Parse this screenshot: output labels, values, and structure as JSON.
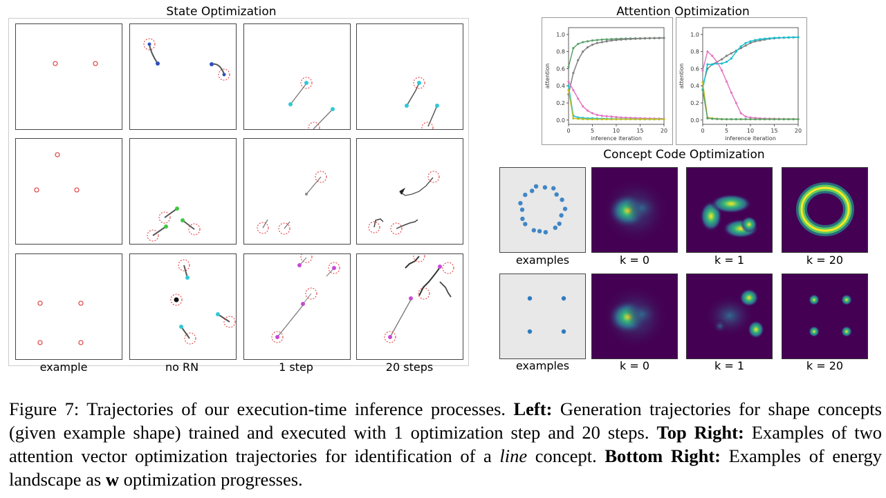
{
  "left": {
    "title": "State Optimization",
    "columns": [
      "example",
      "no RN",
      "1 step",
      "20 steps"
    ]
  },
  "top_right": {
    "title": "Attention Optimization",
    "xlabel": "inference iteration",
    "ylabel": "attention"
  },
  "bottom_right": {
    "title": "Concept Code Optimization",
    "row1_labels": [
      "examples",
      "k = 0",
      "k = 1",
      "k = 20"
    ],
    "row2_labels": [
      "examples",
      "k = 0",
      "k = 1",
      "k = 20"
    ]
  },
  "chart_data": [
    {
      "type": "line",
      "title": "",
      "xlabel": "inference iteration",
      "ylabel": "attention",
      "xlim": [
        0,
        20
      ],
      "ylim": [
        0,
        1.0
      ],
      "x_ticks": [
        0,
        5,
        10,
        15,
        20
      ],
      "y_ticks": [
        0.0,
        0.2,
        0.4,
        0.6,
        0.8,
        1.0
      ],
      "x": [
        0,
        1,
        2,
        3,
        4,
        5,
        6,
        7,
        8,
        9,
        10,
        11,
        12,
        13,
        14,
        15,
        16,
        17,
        18,
        19,
        20
      ],
      "series": [
        {
          "color": "#5aa06a",
          "values": [
            0.62,
            0.84,
            0.89,
            0.91,
            0.92,
            0.93,
            0.935,
            0.94,
            0.943,
            0.946,
            0.948,
            0.95,
            0.952,
            0.953,
            0.954,
            0.955,
            0.956,
            0.957,
            0.958,
            0.959,
            0.96
          ]
        },
        {
          "color": "#7f7f7f",
          "values": [
            0.3,
            0.55,
            0.7,
            0.8,
            0.85,
            0.88,
            0.9,
            0.91,
            0.92,
            0.93,
            0.935,
            0.94,
            0.944,
            0.947,
            0.95,
            0.952,
            0.954,
            0.956,
            0.957,
            0.958,
            0.96
          ]
        },
        {
          "color": "#e377c2",
          "values": [
            0.45,
            0.35,
            0.25,
            0.16,
            0.11,
            0.08,
            0.06,
            0.05,
            0.045,
            0.04,
            0.035,
            0.03,
            0.028,
            0.026,
            0.024,
            0.022,
            0.02,
            0.019,
            0.018,
            0.017,
            0.016
          ]
        },
        {
          "color": "#17becf",
          "values": [
            0.4,
            0.05,
            0.03,
            0.025,
            0.02,
            0.02,
            0.018,
            0.016,
            0.015,
            0.014,
            0.013,
            0.012,
            0.012,
            0.011,
            0.011,
            0.01,
            0.01,
            0.01,
            0.01,
            0.01,
            0.01
          ]
        },
        {
          "color": "#bcbd22",
          "values": [
            0.35,
            0.02,
            0.015,
            0.012,
            0.01,
            0.01,
            0.01,
            0.01,
            0.01,
            0.01,
            0.01,
            0.01,
            0.01,
            0.01,
            0.01,
            0.01,
            0.01,
            0.01,
            0.01,
            0.01,
            0.01
          ]
        }
      ]
    },
    {
      "type": "line",
      "title": "",
      "xlabel": "inference iteration",
      "ylabel": "attention",
      "xlim": [
        0,
        20
      ],
      "ylim": [
        0,
        1.0
      ],
      "x_ticks": [
        0,
        5,
        10,
        15,
        20
      ],
      "y_ticks": [
        0.0,
        0.2,
        0.4,
        0.6,
        0.8,
        1.0
      ],
      "x": [
        0,
        1,
        2,
        3,
        4,
        5,
        6,
        7,
        8,
        9,
        10,
        11,
        12,
        13,
        14,
        15,
        16,
        17,
        18,
        19,
        20
      ],
      "series": [
        {
          "color": "#7f7f7f",
          "values": [
            0.4,
            0.6,
            0.65,
            0.68,
            0.71,
            0.75,
            0.78,
            0.81,
            0.84,
            0.87,
            0.9,
            0.92,
            0.93,
            0.94,
            0.95,
            0.955,
            0.96,
            0.962,
            0.964,
            0.966,
            0.968
          ]
        },
        {
          "color": "#17becf",
          "values": [
            0.36,
            0.65,
            0.65,
            0.66,
            0.66,
            0.68,
            0.72,
            0.8,
            0.86,
            0.9,
            0.92,
            0.935,
            0.945,
            0.95,
            0.955,
            0.96,
            0.962,
            0.964,
            0.966,
            0.967,
            0.968
          ]
        },
        {
          "color": "#e377c2",
          "values": [
            0.58,
            0.8,
            0.75,
            0.68,
            0.58,
            0.45,
            0.32,
            0.2,
            0.08,
            0.04,
            0.03,
            0.025,
            0.02,
            0.018,
            0.016,
            0.015,
            0.014,
            0.013,
            0.012,
            0.012,
            0.012
          ]
        },
        {
          "color": "#bcbd22",
          "values": [
            0.44,
            0.03,
            0.02,
            0.015,
            0.012,
            0.01,
            0.01,
            0.01,
            0.01,
            0.01,
            0.01,
            0.01,
            0.01,
            0.01,
            0.01,
            0.01,
            0.01,
            0.01,
            0.01,
            0.01,
            0.01
          ]
        },
        {
          "color": "#5aa06a",
          "values": [
            0.35,
            0.02,
            0.015,
            0.012,
            0.01,
            0.01,
            0.01,
            0.01,
            0.01,
            0.01,
            0.01,
            0.01,
            0.01,
            0.01,
            0.01,
            0.01,
            0.01,
            0.01,
            0.01,
            0.01,
            0.01
          ]
        }
      ]
    }
  ],
  "caption": {
    "figure_label": "Figure 7:",
    "intro": " Trajectories of our execution-time inference processes. ",
    "left_label": "Left:",
    "left_text": " Generation trajectories for shape concepts (given example shape) trained and executed with 1 optimization step and 20 steps. ",
    "top_right_label": "Top Right:",
    "top_right_text": " Examples of two attention vector optimization trajectories for identification of a ",
    "line_word": "line",
    "top_right_text2": " concept. ",
    "bottom_right_label": "Bottom Right:",
    "bottom_right_text": " Examples of energy landscape as ",
    "w_symbol": "w",
    "bottom_right_text2": " optimization progresses."
  }
}
